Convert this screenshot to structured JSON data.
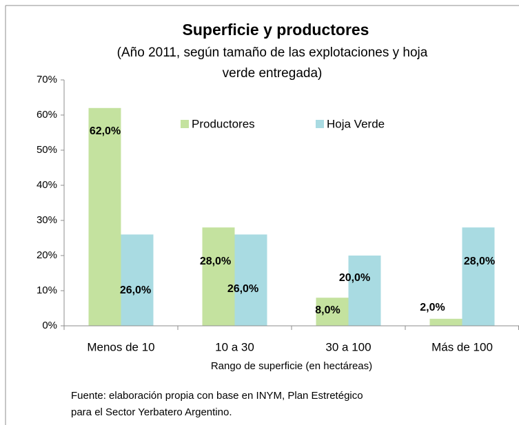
{
  "chart_data": {
    "type": "bar",
    "title": "Superficie  y productores",
    "subtitle": [
      "(Año 2011,  según tamaño de las explotaciones y hoja",
      "verde entregada)"
    ],
    "categories": [
      "Menos de 10",
      "10 a 30",
      "30 a 100",
      "Más de 100"
    ],
    "series": [
      {
        "name": "Productores",
        "color": "#c4e29f",
        "values": [
          62,
          28,
          8,
          2
        ],
        "value_labels": [
          "62,0%",
          "28,0%",
          "8,0%",
          "2,0%"
        ]
      },
      {
        "name": "Hoja Verde",
        "color": "#a9dbe2",
        "values": [
          26,
          26,
          20,
          28
        ],
        "value_labels": [
          "26,0%",
          "26,0%",
          "20,0%",
          "28,0%"
        ]
      }
    ],
    "ylim": [
      0,
      70
    ],
    "yticks": [
      {
        "value": 0,
        "label": "0%"
      },
      {
        "value": 10,
        "label": "10%"
      },
      {
        "value": 20,
        "label": "20%"
      },
      {
        "value": 30,
        "label": "30%"
      },
      {
        "value": 40,
        "label": "40%"
      },
      {
        "value": 50,
        "label": "50%"
      },
      {
        "value": 60,
        "label": "60%"
      },
      {
        "value": 70,
        "label": "70%"
      }
    ],
    "xlabel": "Rango de superficie (en hectáreas)",
    "source": [
      "Fuente: elaboración propia con base en INYM, Plan Estretégico",
      "para el Sector Yerbatero Argentino."
    ],
    "grid": false
  }
}
